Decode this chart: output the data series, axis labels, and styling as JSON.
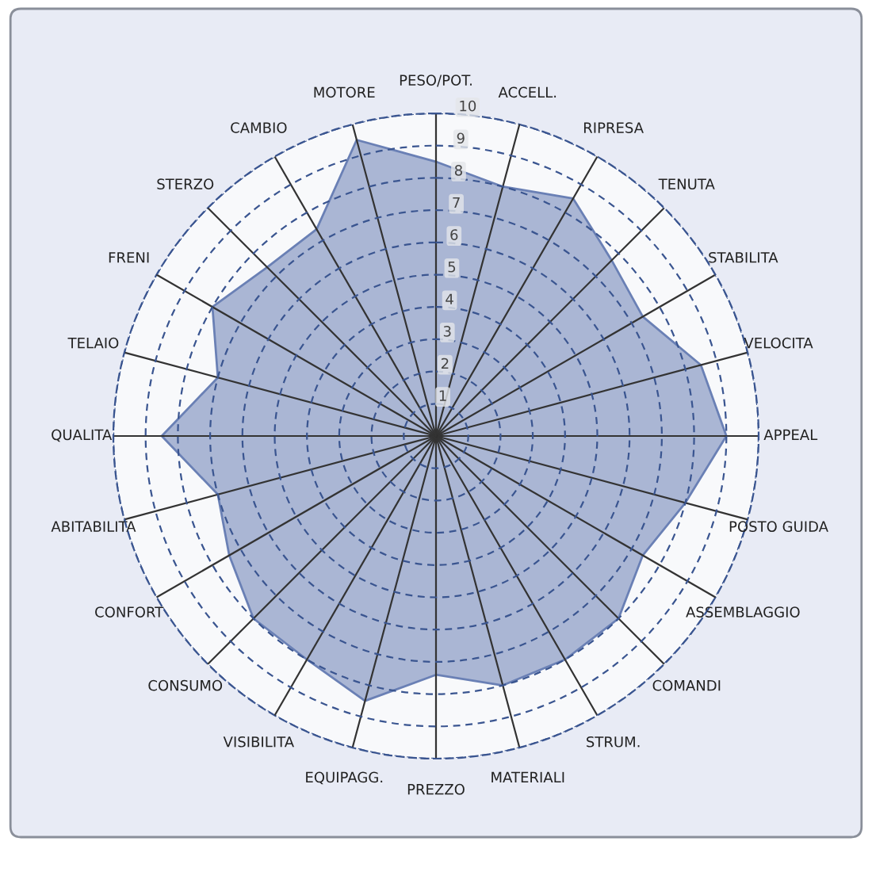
{
  "chart_data": {
    "type": "radar",
    "categories": [
      "PESO/POT.",
      "ACCELL.",
      "RIPRESA",
      "TENUTA",
      "STABILITA",
      "VELOCITA",
      "APPEAL",
      "POSTO GUIDA",
      "ASSEMBLAGGIO",
      "COMANDI",
      "STRUM.",
      "MATERIALI",
      "PREZZO",
      "EQUIPAGG.",
      "VISIBILITA",
      "CONSUMO",
      "CONFORT",
      "ABITABILITA",
      "QUALITA",
      "TELAIO",
      "FRENI",
      "STERZO",
      "CAMBIO",
      "MOTORE"
    ],
    "series": [
      {
        "color": "#6a80b5",
        "values": [
          8.5,
          8.0,
          8.5,
          7.7,
          7.4,
          8.5,
          9.0,
          8.0,
          7.4,
          8.0,
          8.0,
          8.0,
          7.4,
          8.5,
          8.0,
          8.0,
          7.4,
          7.0,
          8.5,
          7.0,
          8.0,
          7.4,
          7.4,
          9.5
        ]
      }
    ],
    "ylim": [
      0,
      10
    ],
    "yticks": [
      1,
      2,
      3,
      4,
      5,
      6,
      7,
      8,
      9,
      10
    ],
    "grid": true
  }
}
